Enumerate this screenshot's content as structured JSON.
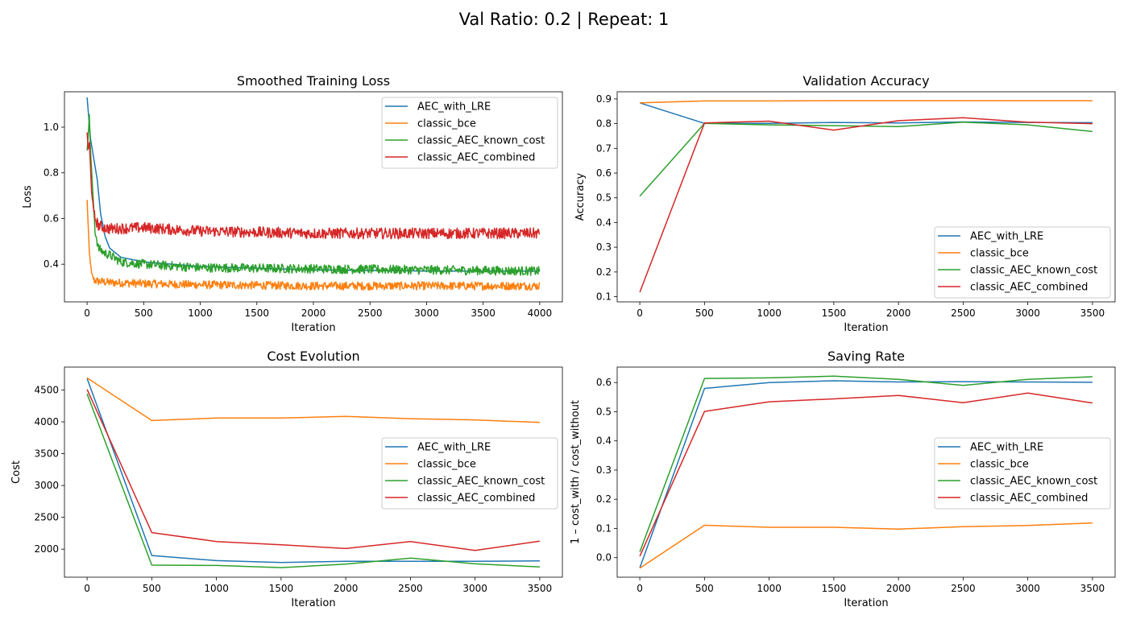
{
  "figure": {
    "suptitle": "Val Ratio: 0.2 | Repeat: 1"
  },
  "legend_labels": [
    "AEC_with_LRE",
    "classic_bce",
    "classic_AEC_known_cost",
    "classic_AEC_combined"
  ],
  "colors": {
    "AEC_with_LRE": "#1f77b4",
    "classic_bce": "#ff7f0e",
    "classic_AEC_known_cost": "#2ca02c",
    "classic_AEC_combined": "#d62728"
  },
  "chart_data": [
    {
      "id": "loss",
      "type": "line",
      "title": "Smoothed Training Loss",
      "xlabel": "Iteration",
      "ylabel": "Loss",
      "xlim": [
        -200,
        4200
      ],
      "ylim": [
        0.235,
        1.155
      ],
      "xticks": [
        0,
        500,
        1000,
        1500,
        2000,
        2500,
        3000,
        3500,
        4000
      ],
      "yticks": [
        0.4,
        0.6,
        0.8,
        1.0
      ],
      "ytick_labels": [
        "0.4",
        "0.6",
        "0.8",
        "1.0"
      ],
      "legend_position": "upper right",
      "grid": false,
      "noisy": true,
      "series": [
        {
          "name": "AEC_with_LRE",
          "x": [
            0,
            30,
            60,
            90,
            120,
            160,
            200,
            300,
            500,
            1000,
            2000,
            3000,
            4000
          ],
          "y": [
            1.13,
            0.95,
            0.86,
            0.77,
            0.62,
            0.52,
            0.47,
            0.43,
            0.41,
            0.39,
            0.375,
            0.37,
            0.37
          ],
          "noise": 0
        },
        {
          "name": "classic_bce",
          "x": [
            0,
            20,
            40,
            60,
            100,
            200,
            500,
            1000,
            2000,
            3000,
            4000
          ],
          "y": [
            0.68,
            0.45,
            0.36,
            0.33,
            0.325,
            0.32,
            0.315,
            0.31,
            0.305,
            0.305,
            0.305
          ],
          "noise": 0.018
        },
        {
          "name": "classic_AEC_known_cost",
          "x": [
            0,
            10,
            20,
            30,
            50,
            70,
            100,
            150,
            200,
            300,
            500,
            1000,
            2000,
            3000,
            4000
          ],
          "y": [
            0.9,
            0.97,
            1.05,
            0.9,
            0.72,
            0.55,
            0.47,
            0.45,
            0.44,
            0.41,
            0.4,
            0.385,
            0.38,
            0.375,
            0.37
          ],
          "noise": 0.02
        },
        {
          "name": "classic_AEC_combined",
          "x": [
            0,
            10,
            20,
            40,
            60,
            80,
            100,
            150,
            200,
            500,
            1000,
            2000,
            3000,
            4000
          ],
          "y": [
            0.98,
            0.9,
            0.93,
            0.72,
            0.62,
            0.59,
            0.57,
            0.56,
            0.555,
            0.56,
            0.545,
            0.535,
            0.535,
            0.535
          ],
          "noise": 0.024
        }
      ]
    },
    {
      "id": "acc",
      "type": "line",
      "title": "Validation Accuracy",
      "xlabel": "Iteration",
      "ylabel": "Accuracy",
      "xlim": [
        -175,
        3675
      ],
      "ylim": [
        0.079,
        0.929
      ],
      "xticks": [
        0,
        500,
        1000,
        1500,
        2000,
        2500,
        3000,
        3500
      ],
      "yticks": [
        0.1,
        0.2,
        0.3,
        0.4,
        0.5,
        0.6,
        0.7,
        0.8,
        0.9
      ],
      "ytick_labels": [
        "0.1",
        "0.2",
        "0.3",
        "0.4",
        "0.5",
        "0.6",
        "0.7",
        "0.8",
        "0.9"
      ],
      "legend_position": "lower right",
      "grid": false,
      "series": [
        {
          "name": "AEC_with_LRE",
          "x": [
            0,
            500,
            1000,
            1500,
            2000,
            2500,
            3000,
            3500
          ],
          "y": [
            0.884,
            0.801,
            0.801,
            0.805,
            0.803,
            0.807,
            0.805,
            0.804
          ]
        },
        {
          "name": "classic_bce",
          "x": [
            0,
            500,
            1000,
            1500,
            2000,
            2500,
            3000,
            3500
          ],
          "y": [
            0.884,
            0.892,
            0.892,
            0.893,
            0.893,
            0.893,
            0.893,
            0.893
          ]
        },
        {
          "name": "classic_AEC_known_cost",
          "x": [
            0,
            500,
            1000,
            1500,
            2000,
            2500,
            3000,
            3500
          ],
          "y": [
            0.507,
            0.801,
            0.795,
            0.792,
            0.788,
            0.806,
            0.795,
            0.768
          ]
        },
        {
          "name": "classic_AEC_combined",
          "x": [
            0,
            500,
            1000,
            1500,
            2000,
            2500,
            3000,
            3500
          ],
          "y": [
            0.118,
            0.803,
            0.81,
            0.774,
            0.812,
            0.824,
            0.806,
            0.8
          ]
        }
      ]
    },
    {
      "id": "cost",
      "type": "line",
      "title": "Cost Evolution",
      "xlabel": "Iteration",
      "ylabel": "Cost",
      "xlim": [
        -175,
        3675
      ],
      "ylim": [
        1560,
        4860
      ],
      "xticks": [
        0,
        500,
        1000,
        1500,
        2000,
        2500,
        3000,
        3500
      ],
      "yticks": [
        2000,
        2500,
        3000,
        3500,
        4000,
        4500
      ],
      "ytick_labels": [
        "2000",
        "2500",
        "3000",
        "3500",
        "4000",
        "4500"
      ],
      "legend_position": "center right",
      "grid": false,
      "series": [
        {
          "name": "AEC_with_LRE",
          "x": [
            0,
            500,
            1000,
            1500,
            2000,
            2500,
            3000,
            3500
          ],
          "y": [
            4680,
            1900,
            1820,
            1790,
            1810,
            1810,
            1810,
            1815
          ]
        },
        {
          "name": "classic_bce",
          "x": [
            0,
            500,
            1000,
            1500,
            2000,
            2500,
            3000,
            3500
          ],
          "y": [
            4690,
            4020,
            4060,
            4060,
            4085,
            4050,
            4030,
            3990
          ]
        },
        {
          "name": "classic_AEC_known_cost",
          "x": [
            0,
            500,
            1000,
            1500,
            2000,
            2500,
            3000,
            3500
          ],
          "y": [
            4440,
            1750,
            1745,
            1710,
            1765,
            1860,
            1770,
            1720
          ]
        },
        {
          "name": "classic_AEC_combined",
          "x": [
            0,
            500,
            1000,
            1500,
            2000,
            2500,
            3000,
            3500
          ],
          "y": [
            4510,
            2260,
            2120,
            2070,
            2010,
            2120,
            1980,
            2125
          ]
        }
      ]
    },
    {
      "id": "saving",
      "type": "line",
      "title": "Saving Rate",
      "xlabel": "Iteration",
      "ylabel": "1 – cost_with / cost_without",
      "xlim": [
        -175,
        3675
      ],
      "ylim": [
        -0.067,
        0.653
      ],
      "xticks": [
        0,
        500,
        1000,
        1500,
        2000,
        2500,
        3000,
        3500
      ],
      "yticks": [
        0.0,
        0.1,
        0.2,
        0.3,
        0.4,
        0.5,
        0.6
      ],
      "ytick_labels": [
        "0.0",
        "0.1",
        "0.2",
        "0.3",
        "0.4",
        "0.5",
        "0.6"
      ],
      "legend_position": "center right",
      "grid": false,
      "series": [
        {
          "name": "AEC_with_LRE",
          "x": [
            0,
            500,
            1000,
            1500,
            2000,
            2500,
            3000,
            3500
          ],
          "y": [
            -0.035,
            0.58,
            0.6,
            0.606,
            0.602,
            0.603,
            0.602,
            0.601
          ]
        },
        {
          "name": "classic_bce",
          "x": [
            0,
            500,
            1000,
            1500,
            2000,
            2500,
            3000,
            3500
          ],
          "y": [
            -0.036,
            0.111,
            0.104,
            0.104,
            0.098,
            0.106,
            0.11,
            0.119
          ]
        },
        {
          "name": "classic_AEC_known_cost",
          "x": [
            0,
            500,
            1000,
            1500,
            2000,
            2500,
            3000,
            3500
          ],
          "y": [
            0.02,
            0.614,
            0.616,
            0.622,
            0.611,
            0.59,
            0.611,
            0.62
          ]
        },
        {
          "name": "classic_AEC_combined",
          "x": [
            0,
            500,
            1000,
            1500,
            2000,
            2500,
            3000,
            3500
          ],
          "y": [
            0.005,
            0.501,
            0.534,
            0.544,
            0.556,
            0.531,
            0.564,
            0.53
          ]
        }
      ]
    }
  ]
}
